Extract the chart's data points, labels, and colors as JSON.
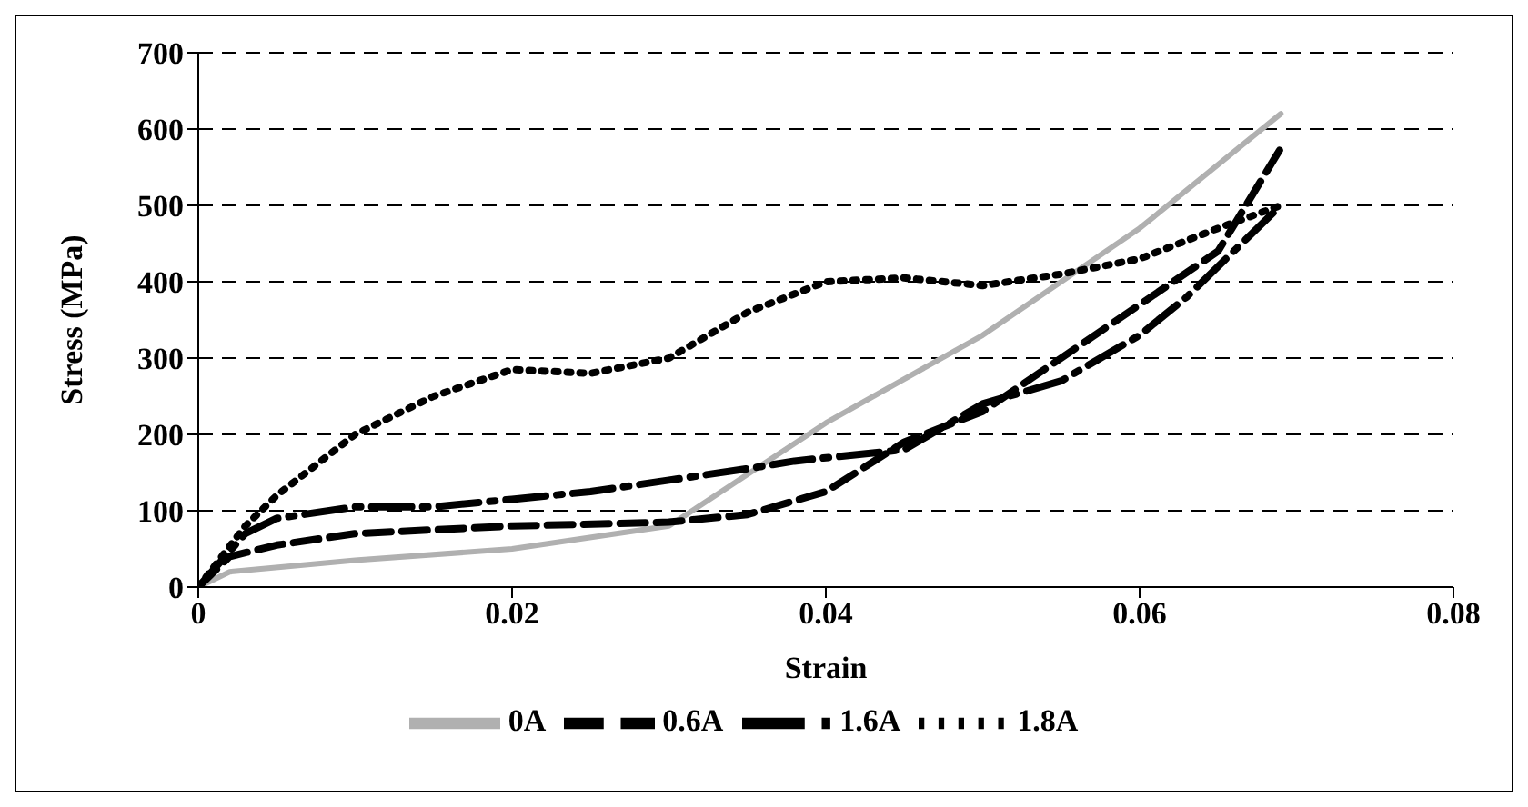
{
  "chart_data": {
    "type": "line",
    "xlabel": "Strain",
    "ylabel": "Stress (MPa)",
    "xlim": [
      0,
      0.08
    ],
    "xticks": [
      0,
      0.02,
      0.04,
      0.06,
      0.08
    ],
    "ylim": [
      0,
      700
    ],
    "yticks": [
      0,
      100,
      200,
      300,
      400,
      500,
      600,
      700
    ],
    "grid": "y",
    "legend": "bottom",
    "marker": "none",
    "series": [
      {
        "name": "0A",
        "color": "#b0b0b0",
        "line_style": "solid",
        "x": [
          0,
          0.002,
          0.01,
          0.02,
          0.03,
          0.04,
          0.05,
          0.06,
          0.069
        ],
        "values": [
          0,
          20,
          35,
          50,
          80,
          215,
          330,
          470,
          620
        ]
      },
      {
        "name": "0.6A",
        "color": "#000000",
        "line_style": "dashed",
        "x": [
          0,
          0.002,
          0.005,
          0.01,
          0.02,
          0.03,
          0.035,
          0.04,
          0.045,
          0.05,
          0.055,
          0.06,
          0.065,
          0.069
        ],
        "values": [
          0,
          40,
          55,
          70,
          80,
          85,
          95,
          125,
          190,
          230,
          300,
          370,
          440,
          575
        ]
      },
      {
        "name": "1.6A",
        "color": "#000000",
        "line_style": "dashdot",
        "x": [
          0,
          0.003,
          0.005,
          0.01,
          0.015,
          0.02,
          0.025,
          0.03,
          0.035,
          0.038,
          0.045,
          0.05,
          0.055,
          0.06,
          0.063,
          0.066,
          0.0685
        ],
        "values": [
          0,
          70,
          90,
          105,
          105,
          115,
          125,
          140,
          155,
          165,
          180,
          240,
          270,
          330,
          380,
          440,
          490
        ]
      },
      {
        "name": "1.8A",
        "color": "#000000",
        "line_style": "dotted",
        "x": [
          0,
          0.003,
          0.005,
          0.01,
          0.015,
          0.02,
          0.025,
          0.03,
          0.035,
          0.04,
          0.045,
          0.05,
          0.055,
          0.06,
          0.065,
          0.069
        ],
        "values": [
          0,
          80,
          120,
          200,
          250,
          285,
          280,
          300,
          360,
          400,
          405,
          395,
          410,
          430,
          470,
          500
        ]
      }
    ]
  }
}
